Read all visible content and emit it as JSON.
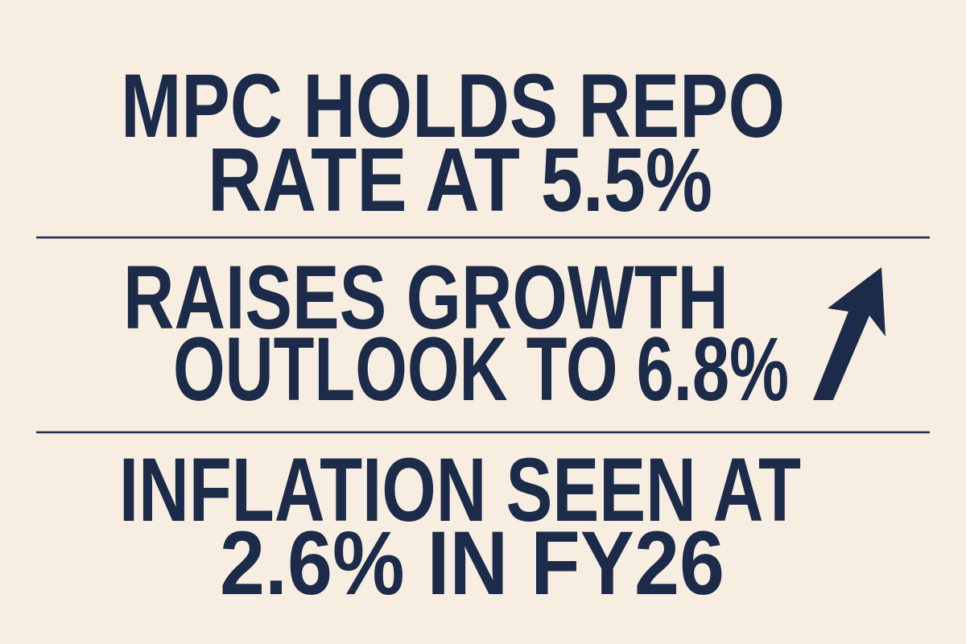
{
  "headlines": [
    {
      "lines": [
        "MPC HOLDS REPO",
        "RATE AT 5.5%"
      ]
    },
    {
      "lines": [
        "RAISES GROWTH",
        "OUTLOOK TO 6.8%"
      ]
    },
    {
      "lines": [
        "INFLATION SEEN AT",
        "2.6% IN FY26"
      ]
    }
  ]
}
